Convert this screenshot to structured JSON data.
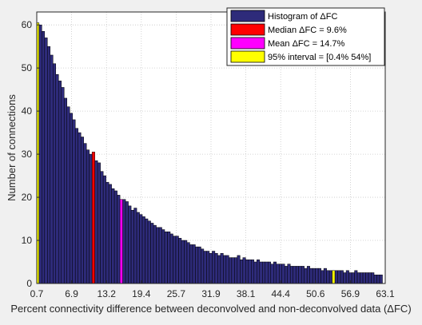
{
  "chart_data": {
    "type": "bar",
    "xlabel": "Percent connectivity difference between deconvolved and non-deconvolved data (ΔFC)",
    "ylabel": "Number of connections",
    "xlim": [
      0.7,
      63.1
    ],
    "ylim": [
      0,
      63
    ],
    "xticks": [
      "0.7",
      "6.9",
      "13.2",
      "19.4",
      "25.7",
      "31.9",
      "38.1",
      "44.4",
      "50.6",
      "56.9",
      "63.1"
    ],
    "yticks": [
      0,
      10,
      20,
      30,
      40,
      50,
      60
    ],
    "grid": true,
    "legend_position": "top-right",
    "legend": [
      {
        "label": "Histogram of ΔFC",
        "color": "#2e2b7a"
      },
      {
        "label": "Median ΔFC = 9.6%",
        "color": "#ff0000"
      },
      {
        "label": "Mean ΔFC = 14.7%",
        "color": "#ff00ff"
      },
      {
        "label": "95% interval = [0.4% 54%]",
        "color": "#ffff00"
      }
    ],
    "bin_width": 0.5,
    "bin_start": 0.6,
    "values": [
      60.5,
      60,
      58.5,
      57,
      55,
      53,
      51,
      48.5,
      47,
      45.5,
      43,
      41,
      39.5,
      38,
      36,
      35,
      34,
      32.5,
      31,
      30,
      30.5,
      28.5,
      28,
      26,
      25,
      23.5,
      23,
      22,
      21.5,
      20.5,
      19.5,
      19.5,
      19,
      18,
      17,
      17.5,
      16.5,
      16,
      15.5,
      15,
      14.5,
      14,
      13.5,
      13,
      13,
      12.5,
      12,
      12,
      11.5,
      11,
      11,
      10.5,
      10,
      10,
      9.5,
      9,
      9,
      8.5,
      8.5,
      8,
      7.5,
      7.5,
      7,
      7.5,
      7,
      6.5,
      7,
      6.5,
      6.5,
      6,
      6,
      6,
      6.5,
      5.5,
      6,
      5.5,
      5.5,
      5.5,
      5,
      5.5,
      5,
      5,
      5,
      5,
      4.5,
      5,
      4.5,
      4.5,
      4.5,
      4,
      4.5,
      4,
      4,
      4,
      4,
      4,
      3.5,
      4,
      3.5,
      3.5,
      3.5,
      3.5,
      3,
      3.5,
      3,
      3,
      3,
      3,
      3,
      3,
      2.5,
      3,
      2.5,
      2.5,
      3,
      2.5,
      2.5,
      2.5,
      2.5,
      2.5,
      2.5,
      2,
      2,
      2
    ],
    "highlights": [
      {
        "index": 0,
        "color": "#ffff00"
      },
      {
        "index": 20,
        "color": "#ff0000"
      },
      {
        "index": 30,
        "color": "#ff00ff"
      },
      {
        "index": 106,
        "color": "#ffff00"
      }
    ],
    "bar_color": "#2e2b7a",
    "grid_color": "#c8c8c8",
    "background": "#ffffff"
  }
}
